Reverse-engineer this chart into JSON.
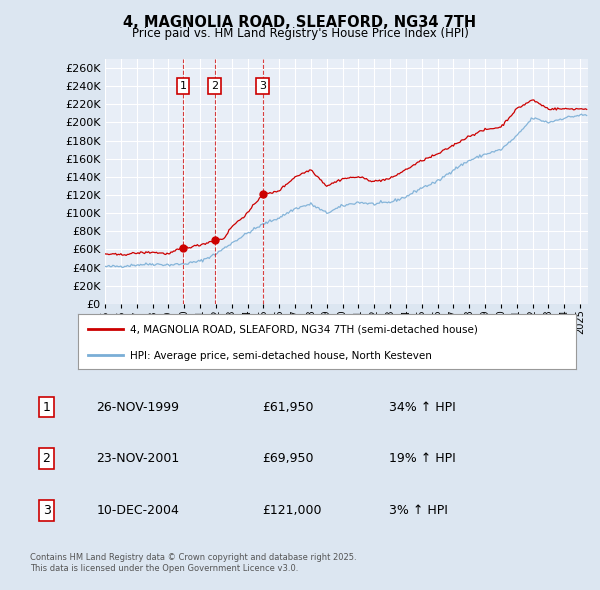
{
  "title": "4, MAGNOLIA ROAD, SLEAFORD, NG34 7TH",
  "subtitle": "Price paid vs. HM Land Registry's House Price Index (HPI)",
  "background_color": "#dce6f1",
  "plot_bg_color": "#e8eef7",
  "grid_color": "#ffffff",
  "red_color": "#cc0000",
  "blue_color": "#7aaed6",
  "ylim": [
    0,
    270000
  ],
  "yticks": [
    0,
    20000,
    40000,
    60000,
    80000,
    100000,
    120000,
    140000,
    160000,
    180000,
    200000,
    220000,
    240000,
    260000
  ],
  "xlim_start": 1995.0,
  "xlim_end": 2025.5,
  "transactions": [
    {
      "num": 1,
      "date": "26-NOV-1999",
      "date_val": 1999.92,
      "price": 61950,
      "hpi_diff": "34% ↑ HPI"
    },
    {
      "num": 2,
      "date": "23-NOV-2001",
      "date_val": 2001.92,
      "price": 69950,
      "hpi_diff": "19% ↑ HPI"
    },
    {
      "num": 3,
      "date": "10-DEC-2004",
      "date_val": 2004.95,
      "price": 121000,
      "hpi_diff": "3% ↑ HPI"
    }
  ],
  "legend_label_red": "4, MAGNOLIA ROAD, SLEAFORD, NG34 7TH (semi-detached house)",
  "legend_label_blue": "HPI: Average price, semi-detached house, North Kesteven",
  "footer": "Contains HM Land Registry data © Crown copyright and database right 2025.\nThis data is licensed under the Open Government Licence v3.0.",
  "hpi_anchors_x": [
    1995.0,
    1996.0,
    1997.0,
    1998.0,
    1999.0,
    2000.0,
    2001.0,
    2002.0,
    2003.0,
    2004.0,
    2005.0,
    2006.0,
    2007.0,
    2008.0,
    2009.0,
    2010.0,
    2011.0,
    2012.0,
    2013.0,
    2014.0,
    2015.0,
    2016.0,
    2017.0,
    2018.0,
    2019.0,
    2020.0,
    2021.0,
    2022.0,
    2023.0,
    2024.0,
    2025.0
  ],
  "hpi_anchors_y": [
    41000,
    41500,
    43000,
    44000,
    43000,
    44000,
    47000,
    55000,
    67000,
    78000,
    88000,
    95000,
    105000,
    110000,
    100000,
    108000,
    112000,
    110000,
    112000,
    118000,
    128000,
    135000,
    148000,
    158000,
    165000,
    170000,
    185000,
    205000,
    200000,
    205000,
    208000
  ],
  "price_anchors_x": [
    1995.0,
    1996.0,
    1997.0,
    1998.0,
    1999.0,
    1999.92,
    2000.5,
    2001.0,
    2001.92,
    2002.5,
    2003.0,
    2004.0,
    2004.95,
    2005.5,
    2006.0,
    2007.0,
    2008.0,
    2009.0,
    2010.0,
    2011.0,
    2012.0,
    2013.0,
    2014.0,
    2015.0,
    2016.0,
    2017.0,
    2018.0,
    2019.0,
    2020.0,
    2021.0,
    2022.0,
    2023.0,
    2024.0,
    2025.0
  ],
  "price_anchors_y": [
    55000,
    54000,
    56000,
    57000,
    55000,
    61950,
    63000,
    65000,
    69950,
    72000,
    85000,
    100000,
    121000,
    122000,
    125000,
    140000,
    148000,
    130000,
    138000,
    140000,
    135000,
    138000,
    148000,
    158000,
    165000,
    175000,
    185000,
    192000,
    195000,
    215000,
    225000,
    215000,
    215000,
    215000
  ]
}
